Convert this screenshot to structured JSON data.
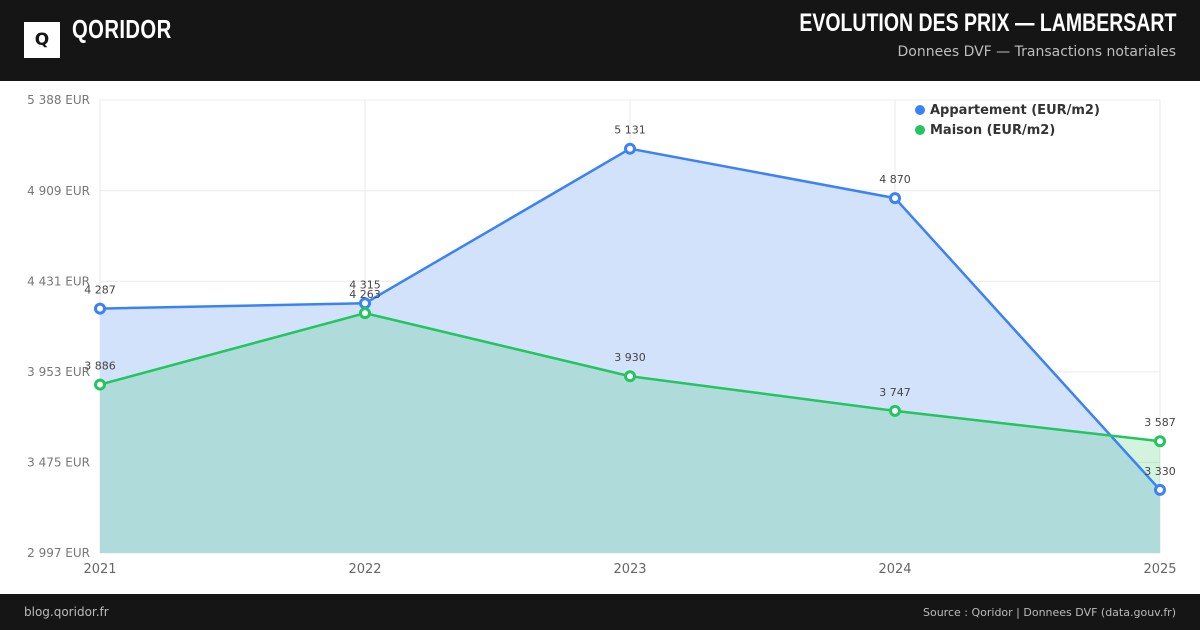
{
  "header": {
    "logo_letter": "Q",
    "brand": "QORIDOR",
    "title": "EVOLUTION DES PRIX — LAMBERSART",
    "subtitle": "Donnees DVF — Transactions notariales"
  },
  "footer": {
    "left": "blog.qoridor.fr",
    "right": "Source : Qoridor | Donnees DVF (data.gouv.fr)"
  },
  "chart_data": {
    "type": "area",
    "title": "EVOLUTION DES PRIX — LAMBERSART",
    "x": [
      "2021",
      "2022",
      "2023",
      "2024",
      "2025"
    ],
    "ylim": [
      2997,
      5388
    ],
    "yticks": [
      5388,
      4909,
      4431,
      3953,
      3475,
      2997
    ],
    "ytick_labels": [
      "5 388 EUR",
      "4 909 EUR",
      "4 431 EUR",
      "3 953 EUR",
      "3 475 EUR",
      "2 997 EUR"
    ],
    "legend_position": "top-right",
    "series": [
      {
        "name": "Appartement (EUR/m2)",
        "color": "#3b82f6",
        "fill": "#d3e2fb",
        "values": [
          4287,
          4315,
          5131,
          4870,
          3330
        ],
        "labels": [
          "4 287",
          "4 315",
          "5 131",
          "4 870",
          "3 330"
        ]
      },
      {
        "name": "Maison (EUR/m2)",
        "color": "#22c55e",
        "fill": "rgba(34,197,94,0.2)",
        "values": [
          3886,
          4263,
          3930,
          3747,
          3587
        ],
        "labels": [
          "3 886",
          "4 263",
          "3 930",
          "3 747",
          "3 587"
        ]
      }
    ]
  }
}
